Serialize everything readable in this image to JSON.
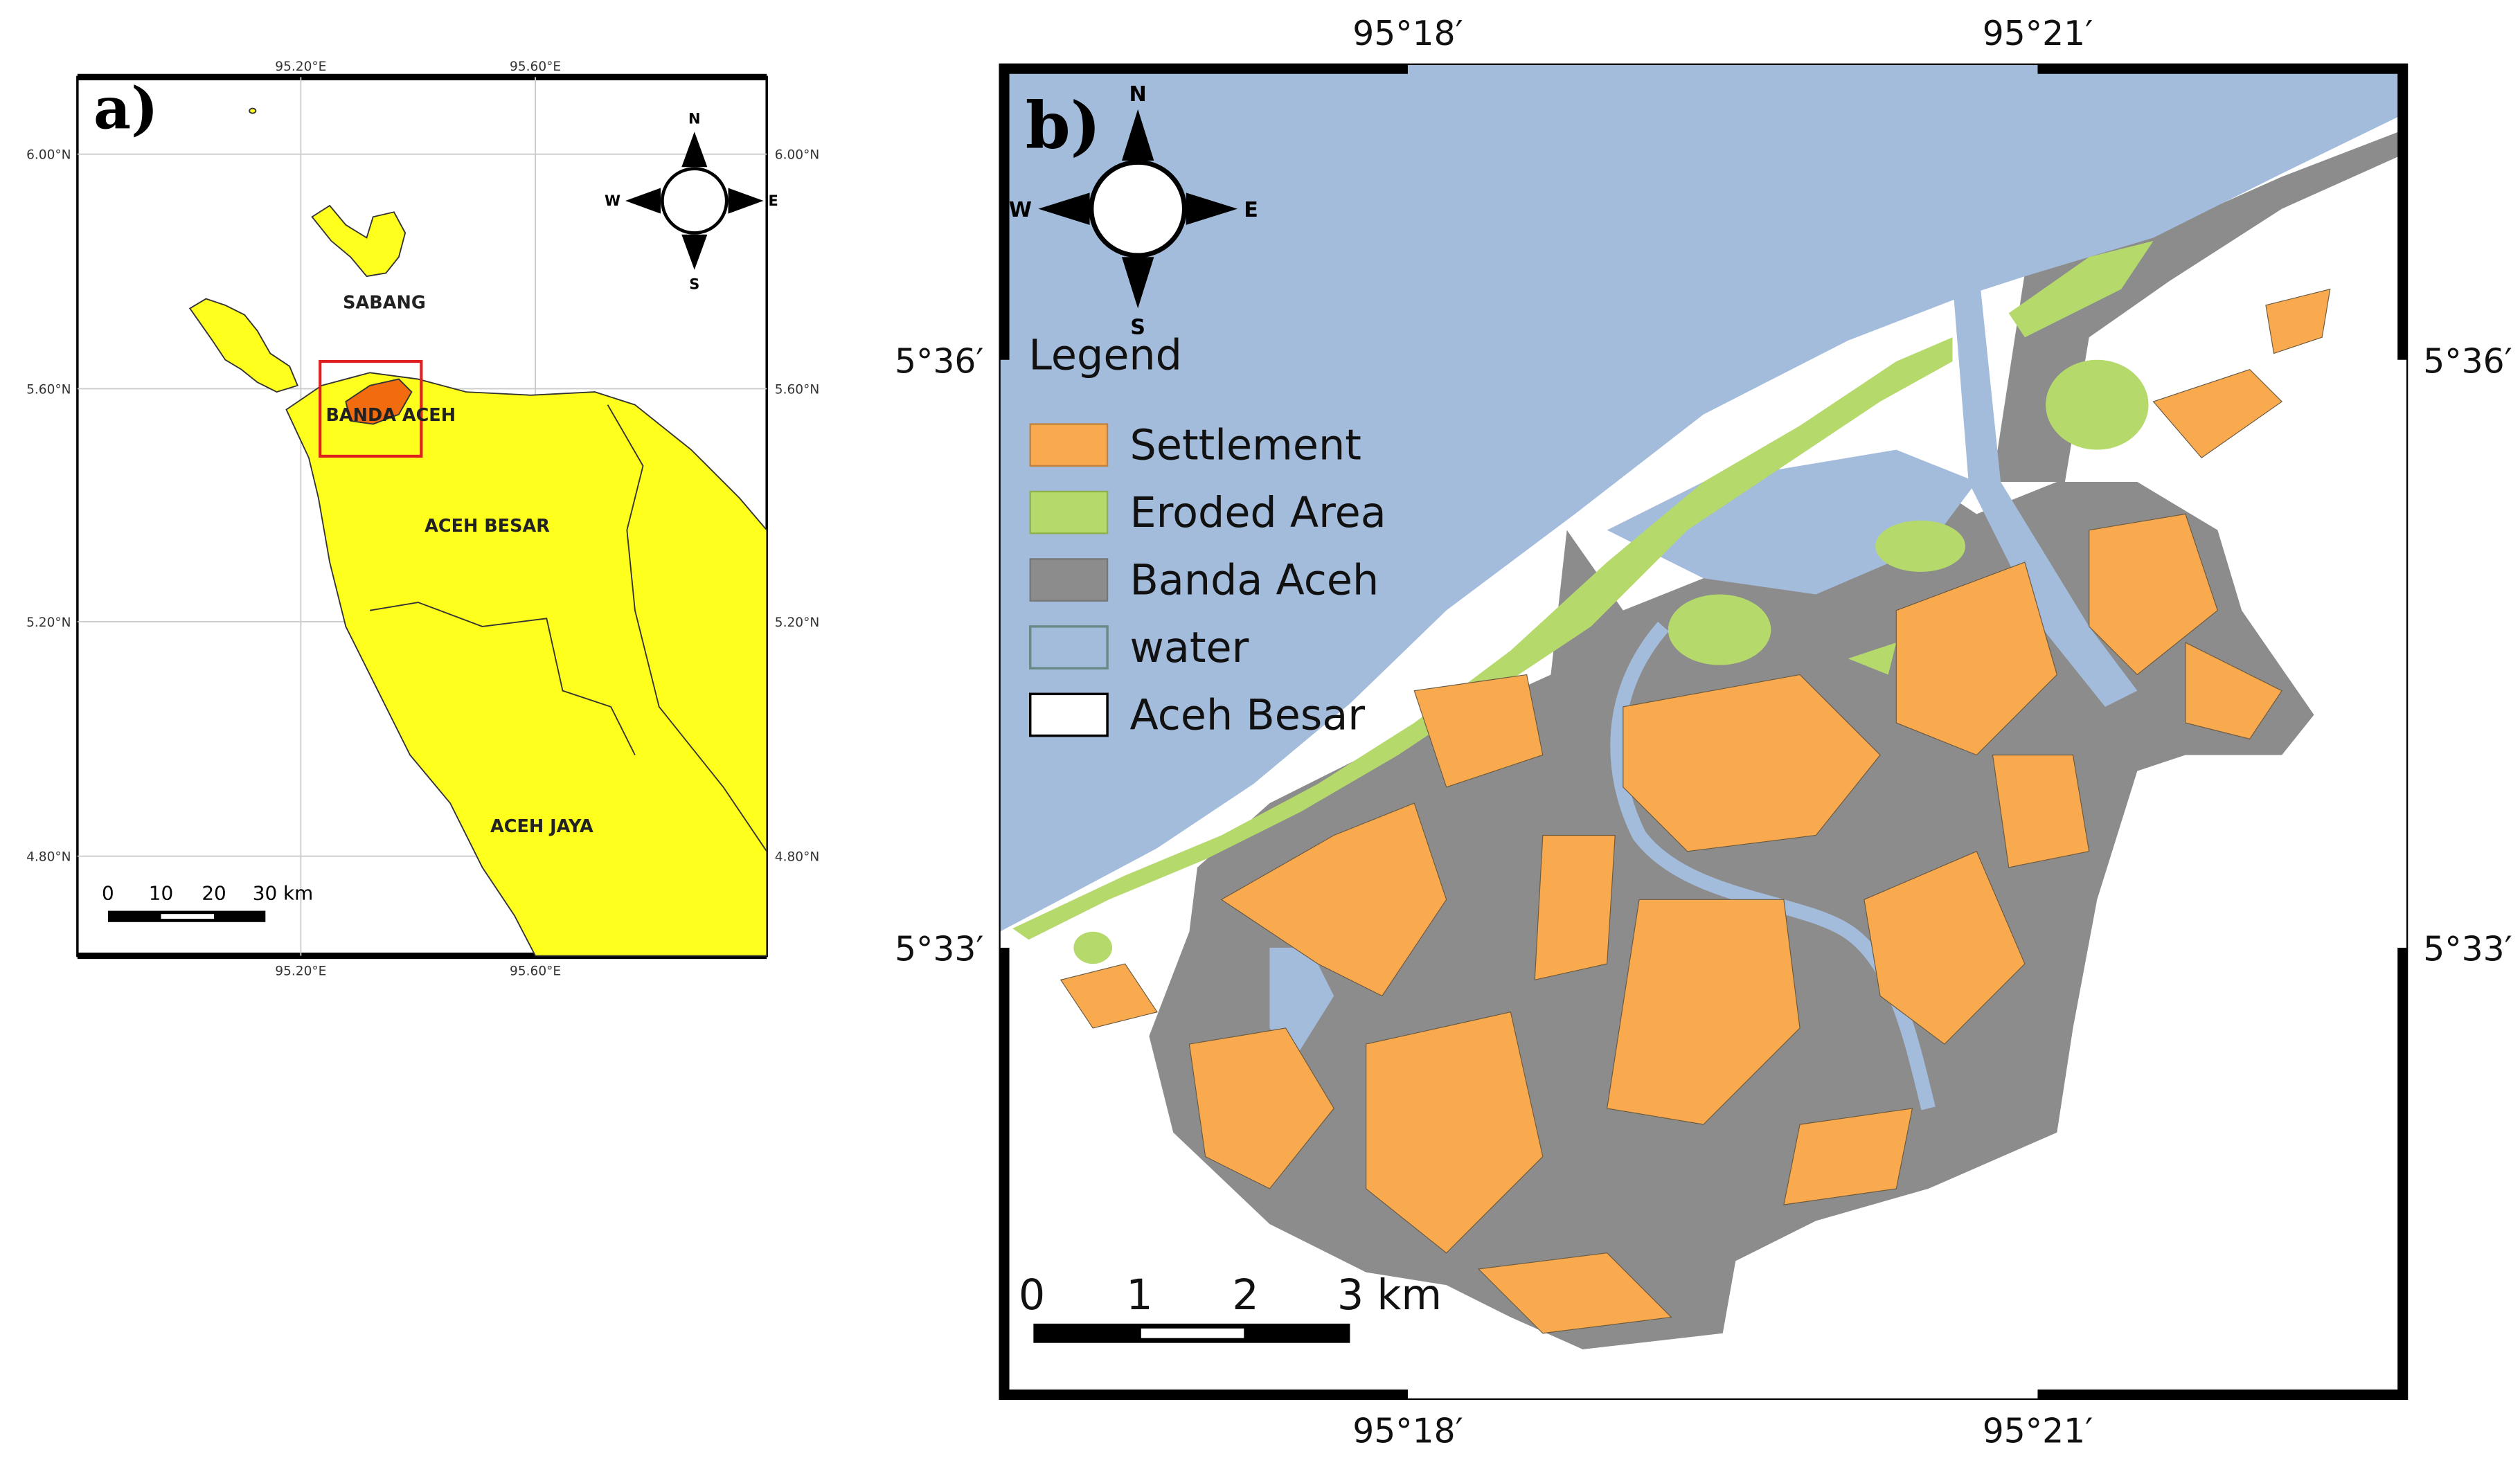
{
  "panel_a": {
    "label": "a)",
    "lon_labels": [
      "95.20°E",
      "95.60°E"
    ],
    "lat_labels": [
      "6.00°N",
      "5.60°N",
      "5.20°N",
      "4.80°N"
    ],
    "places": [
      "SABANG",
      "BANDA ACEH",
      "ACEH BESAR",
      "ACEH JAYA"
    ],
    "compass": [
      "N",
      "E",
      "S",
      "W"
    ],
    "scale_labels": [
      "0",
      "10",
      "20",
      "30 km"
    ]
  },
  "panel_b": {
    "label": "b)",
    "lon_labels": [
      "95°18′",
      "95°21′"
    ],
    "lat_labels": [
      "5°36′",
      "5°33′"
    ],
    "compass": [
      "N",
      "E",
      "S",
      "W"
    ],
    "legend": {
      "title": "Legend",
      "items": [
        "Settlement",
        "Eroded Area",
        "Banda Aceh",
        "water",
        "Aceh Besar"
      ]
    },
    "scale_labels": [
      "0",
      "1",
      "2",
      "3 km"
    ]
  }
}
